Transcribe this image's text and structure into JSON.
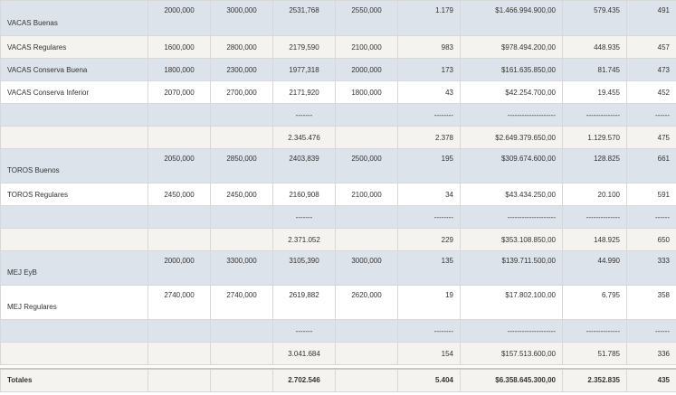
{
  "rows": [
    {
      "style": "blue",
      "h": 39,
      "label": "VACAS Buenas",
      "labelPos": "bottom",
      "cells": [
        "2000,000",
        "3000,000",
        "2531,768",
        "2550,000",
        "1.179",
        "$1.466.994.900,00",
        "579.435",
        "491"
      ]
    },
    {
      "style": "gray",
      "h": 25,
      "label": "VACAS Regulares",
      "labelPos": "middle",
      "cells": [
        "1600,000",
        "2800,000",
        "2179,590",
        "2100,000",
        "983",
        "$978.494.200,00",
        "448.935",
        "457"
      ]
    },
    {
      "style": "blue",
      "h": 25,
      "label": "VACAS Conserva Buena",
      "labelPos": "middle",
      "cells": [
        "1800,000",
        "2300,000",
        "1977,318",
        "2000,000",
        "173",
        "$161.635.850,00",
        "81.745",
        "473"
      ]
    },
    {
      "style": "white",
      "h": 25,
      "label": "VACAS Conserva Inferior",
      "labelPos": "middle",
      "cells": [
        "2070,000",
        "2700,000",
        "2171,920",
        "1800,000",
        "43",
        "$42.254.700,00",
        "19.455",
        "452"
      ]
    },
    {
      "style": "blue",
      "h": 25,
      "label": "",
      "labelPos": "middle",
      "cells": [
        "",
        "",
        "-------",
        "",
        "--------",
        "--------------------",
        "--------------",
        "------"
      ]
    },
    {
      "style": "gray",
      "h": 25,
      "label": "",
      "labelPos": "middle",
      "cells": [
        "",
        "",
        "2.345.476",
        "",
        "2.378",
        "$2.649.379.650,00",
        "1.129.570",
        "475"
      ]
    },
    {
      "style": "blue",
      "h": 38,
      "label": "TOROS Buenos",
      "labelPos": "bottom",
      "cells": [
        "2050,000",
        "2850,000",
        "2403,839",
        "2500,000",
        "195",
        "$309.674.600,00",
        "128.825",
        "661"
      ]
    },
    {
      "style": "white",
      "h": 25,
      "label": "TOROS Regulares",
      "labelPos": "middle",
      "cells": [
        "2450,000",
        "2450,000",
        "2160,908",
        "2100,000",
        "34",
        "$43.434.250,00",
        "20.100",
        "591"
      ]
    },
    {
      "style": "blue",
      "h": 25,
      "label": "",
      "labelPos": "middle",
      "cells": [
        "",
        "",
        "-------",
        "",
        "--------",
        "--------------------",
        "--------------",
        "------"
      ]
    },
    {
      "style": "gray",
      "h": 25,
      "label": "",
      "labelPos": "middle",
      "cells": [
        "",
        "",
        "2.371.052",
        "",
        "229",
        "$353.108.850,00",
        "148.925",
        "650"
      ]
    },
    {
      "style": "blue",
      "h": 38,
      "label": "MEJ EyB",
      "labelPos": "bottom",
      "cells": [
        "2000,000",
        "3300,000",
        "3105,390",
        "3000,000",
        "135",
        "$139.711.500,00",
        "44.990",
        "333"
      ]
    },
    {
      "style": "white",
      "h": 38,
      "label": "MEJ Regulares",
      "labelPos": "bottom",
      "cells": [
        "2740,000",
        "2740,000",
        "2619,882",
        "2620,000",
        "19",
        "$17.802.100,00",
        "6.795",
        "358"
      ]
    },
    {
      "style": "blue",
      "h": 25,
      "label": "",
      "labelPos": "middle",
      "cells": [
        "",
        "",
        "-------",
        "",
        "--------",
        "--------------------",
        "--------------",
        "------"
      ]
    },
    {
      "style": "gray",
      "h": 25,
      "label": "",
      "labelPos": "middle",
      "cells": [
        "",
        "",
        "3.041.684",
        "",
        "154",
        "$157.513.600,00",
        "51.785",
        "336"
      ]
    }
  ],
  "totals": {
    "label": "Totales",
    "cells": [
      "",
      "",
      "2.702.546",
      "",
      "5.404",
      "$6.358.645.300,00",
      "2.352.835",
      "435"
    ]
  }
}
